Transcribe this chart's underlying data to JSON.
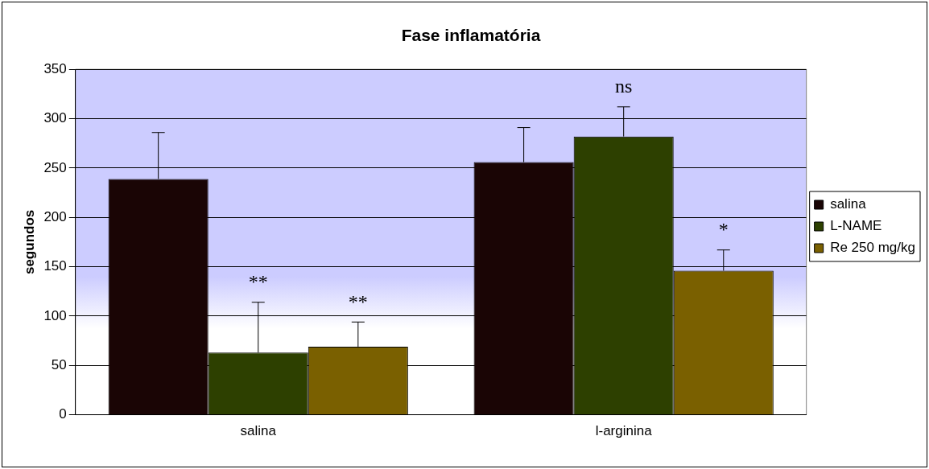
{
  "chart_data": {
    "type": "bar",
    "title": "Fase inflamatória",
    "ylabel": "segundos",
    "categories": [
      "salina",
      "l-arginina"
    ],
    "series": [
      {
        "name": "salina",
        "color": "#1a0505",
        "values": [
          239,
          256
        ],
        "errors": [
          [
            239,
            286
          ],
          [
            256,
            291
          ]
        ]
      },
      {
        "name": "L-NAME",
        "color": "#2d4000",
        "values": [
          63,
          282
        ],
        "errors": [
          [
            63,
            114
          ],
          [
            282,
            312
          ]
        ]
      },
      {
        "name": "Re 250 mg/kg",
        "color": "#7a6000",
        "values": [
          69,
          146
        ],
        "errors": [
          [
            69,
            94
          ],
          [
            146,
            167
          ]
        ]
      }
    ],
    "annotations": [
      {
        "text": "**",
        "x": "salina",
        "y": 114
      },
      {
        "text": "**",
        "y": 94
      },
      {
        "text": "ns",
        "x": "l-arginina",
        "y": 312
      },
      {
        "text": "*",
        "y": 167
      }
    ],
    "ylim": [
      0,
      350
    ],
    "yticks": [
      0,
      50,
      100,
      150,
      200,
      250,
      300,
      350
    ],
    "grid": "y",
    "legend": "right"
  }
}
